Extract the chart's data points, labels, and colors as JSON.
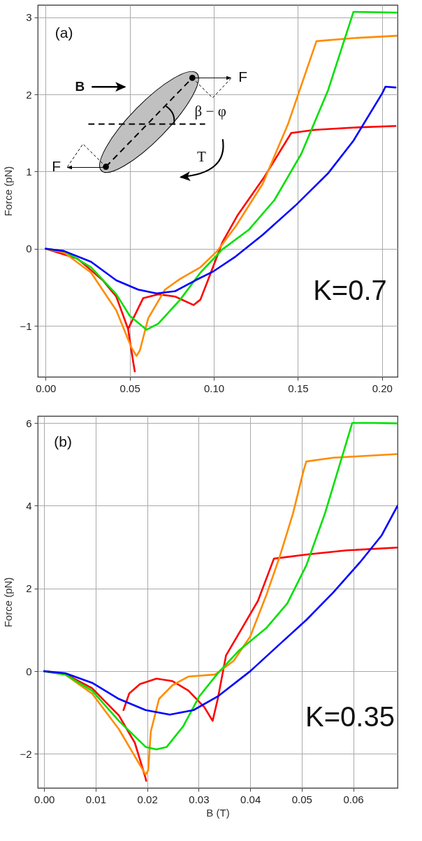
{
  "chart_data": [
    {
      "type": "line",
      "ylabel": "Force (pN)",
      "annotations": [
        "(a)",
        "K=0.7",
        "B",
        "F",
        "F",
        "β − φ",
        "T"
      ],
      "xlim": [
        -0.0047,
        0.2092
      ],
      "ylim": [
        -1.66,
        3.16
      ],
      "xticks": [
        {
          "value": 0,
          "label": "0.00"
        },
        {
          "value": 0.05,
          "label": "0.05"
        },
        {
          "value": 0.1,
          "label": "0.10"
        },
        {
          "value": 0.15,
          "label": "0.15"
        },
        {
          "value": 0.2,
          "label": "0.20"
        }
      ],
      "yticks": [
        {
          "value": -1,
          "label": "−1"
        },
        0,
        1,
        2,
        3
      ],
      "grid": true,
      "series": [
        {
          "color": "#ff0000",
          "x": [
            0,
            0.019,
            0.034,
            0.042,
            0.049,
            0.052,
            0.053,
            null,
            0.049,
            0.058,
            0.067,
            0.077,
            0.088,
            0.092,
            0.097,
            0.105,
            0.114,
            0.13,
            0.146,
            0.16,
            0.183,
            0.208
          ],
          "values": [
            0,
            -0.13,
            -0.41,
            -0.62,
            -1.04,
            -1.46,
            -1.59,
            null,
            -1.04,
            -0.64,
            -0.59,
            -0.62,
            -0.73,
            -0.66,
            -0.38,
            0.08,
            0.43,
            0.93,
            1.5,
            1.54,
            1.57,
            1.59
          ]
        },
        {
          "color": "#ff8c00",
          "x": [
            0,
            0.011,
            0.027,
            0.042,
            0.051,
            0.054,
            0.056,
            0.061,
            0.071,
            0.08,
            0.092,
            0.102,
            0.113,
            0.129,
            0.144,
            0.161,
            0.183,
            0.209
          ],
          "values": [
            0,
            -0.05,
            -0.31,
            -0.8,
            -1.28,
            -1.39,
            -1.32,
            -0.9,
            -0.53,
            -0.39,
            -0.24,
            -0.03,
            0.29,
            0.84,
            1.61,
            2.69,
            2.73,
            2.76
          ]
        },
        {
          "color": "#00e000",
          "x": [
            0,
            0.011,
            0.027,
            0.042,
            0.05,
            0.06,
            0.067,
            0.08,
            0.092,
            0.105,
            0.121,
            0.136,
            0.152,
            0.168,
            0.183,
            0.209
          ],
          "values": [
            0,
            -0.03,
            -0.24,
            -0.59,
            -0.87,
            -1.05,
            -0.97,
            -0.66,
            -0.31,
            -0.01,
            0.25,
            0.63,
            1.23,
            2.06,
            3.07,
            3.06
          ]
        },
        {
          "color": "#0000ff",
          "x": [
            0,
            0.011,
            0.027,
            0.042,
            0.055,
            0.066,
            0.077,
            0.089,
            0.1,
            0.113,
            0.129,
            0.149,
            0.168,
            0.183,
            0.2,
            0.202,
            0.208
          ],
          "values": [
            0,
            -0.03,
            -0.17,
            -0.41,
            -0.53,
            -0.58,
            -0.55,
            -0.41,
            -0.29,
            -0.1,
            0.18,
            0.57,
            0.98,
            1.4,
            2.01,
            2.1,
            2.09
          ]
        }
      ]
    },
    {
      "type": "line",
      "xlabel": "B (T)",
      "ylabel": "Force (pN)",
      "annotations": [
        "(b)",
        "K=0.35"
      ],
      "xlim": [
        -0.00125,
        0.0686
      ],
      "ylim": [
        -2.82,
        6.17
      ],
      "xticks": [
        {
          "value": 0,
          "label": "0.00"
        },
        {
          "value": 0.01,
          "label": "0.01"
        },
        {
          "value": 0.02,
          "label": "0.02"
        },
        {
          "value": 0.03,
          "label": "0.03"
        },
        {
          "value": 0.04,
          "label": "0.04"
        },
        {
          "value": 0.05,
          "label": "0.05"
        },
        {
          "value": 0.06,
          "label": "0.06"
        }
      ],
      "yticks": [
        {
          "value": -2,
          "label": "−2"
        },
        0,
        2,
        4,
        6
      ],
      "grid": true,
      "series": [
        {
          "color": "#ff0000",
          "x": [
            0,
            0.0041,
            0.0093,
            0.0145,
            0.0176,
            0.0197,
            0.0198,
            null,
            0.0154,
            0.0165,
            0.0186,
            0.0218,
            0.0249,
            0.028,
            0.0311,
            0.0327,
            0.0337,
            0.0353,
            0.0384,
            0.0415,
            0.0446,
            0.0509,
            0.0587,
            0.0686
          ],
          "values": [
            0,
            -0.07,
            -0.41,
            -1.07,
            -1.73,
            -2.59,
            -2.65,
            null,
            -0.94,
            -0.54,
            -0.31,
            -0.18,
            -0.24,
            -0.47,
            -0.87,
            -1.2,
            -0.67,
            0.38,
            1.04,
            1.7,
            2.72,
            2.82,
            2.92,
            2.99
          ]
        },
        {
          "color": "#ff8c00",
          "x": [
            0,
            0.0041,
            0.0093,
            0.0145,
            0.0197,
            0.0202,
            0.0207,
            0.0223,
            0.0249,
            0.028,
            0.0332,
            0.0368,
            0.04,
            0.0431,
            0.0457,
            0.0483,
            0.0504,
            0.0509,
            0.0561,
            0.0686
          ],
          "values": [
            0,
            -0.08,
            -0.54,
            -1.4,
            -2.5,
            -2.39,
            -1.46,
            -0.67,
            -0.34,
            -0.13,
            -0.08,
            0.25,
            0.84,
            1.83,
            2.76,
            3.81,
            4.87,
            5.07,
            5.16,
            5.25
          ]
        },
        {
          "color": "#00e000",
          "x": [
            0,
            0.0041,
            0.0093,
            0.0145,
            0.0197,
            0.0218,
            0.0238,
            0.027,
            0.0301,
            0.0337,
            0.0379,
            0.0431,
            0.0472,
            0.0509,
            0.0545,
            0.0577,
            0.0598,
            0.0639,
            0.0686
          ],
          "values": [
            0,
            -0.08,
            -0.47,
            -1.2,
            -1.83,
            -1.89,
            -1.83,
            -1.33,
            -0.61,
            -0.05,
            0.51,
            1.04,
            1.64,
            2.56,
            3.81,
            5.13,
            6.0,
            6.0,
            5.99
          ]
        },
        {
          "color": "#0000ff",
          "x": [
            0,
            0.0041,
            0.0093,
            0.0145,
            0.0197,
            0.0244,
            0.029,
            0.0337,
            0.04,
            0.0457,
            0.0509,
            0.0561,
            0.0613,
            0.0655,
            0.0686
          ],
          "values": [
            0,
            -0.05,
            -0.28,
            -0.67,
            -0.94,
            -1.05,
            -0.94,
            -0.61,
            0,
            0.65,
            1.24,
            1.9,
            2.63,
            3.28,
            4.0
          ]
        }
      ]
    }
  ]
}
